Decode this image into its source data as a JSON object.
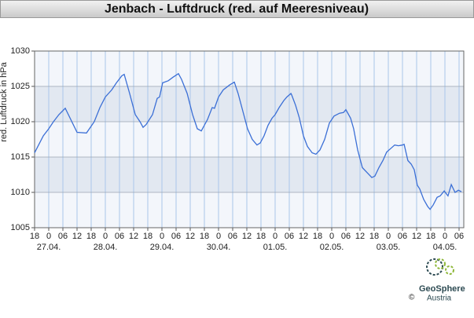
{
  "chart_data": {
    "type": "line",
    "title": "Jenbach - Luftdruck (red. auf Meeresniveau)",
    "y_label": "red. Luftdruck in hPa",
    "color": "#3b6fd6",
    "x": [
      0,
      3.7,
      6,
      8,
      10.3,
      13,
      18,
      22,
      25.3,
      27.7,
      30,
      32.7,
      34.7,
      37,
      38,
      40.3,
      42.7,
      44.7,
      46,
      47.3,
      50,
      52,
      53,
      54.3,
      56.7,
      58.7,
      61,
      62.3,
      64.7,
      67,
      69,
      70.7,
      72,
      73.3,
      75.3,
      76.3,
      78,
      80,
      82.7,
      84.7,
      86.3,
      88.3,
      90.3,
      92.3,
      94.3,
      95.7,
      97.3,
      99,
      100.7,
      102,
      103.7,
      105.7,
      107,
      108.7,
      109,
      110.7,
      112.3,
      114,
      115.7,
      117.7,
      119.3,
      121,
      123,
      125,
      127,
      129.3,
      131,
      132,
      134,
      135.3,
      137,
      139,
      141,
      143,
      144.3,
      146,
      147.7,
      149.3,
      151,
      152.7,
      154.3,
      156,
      156.7,
      158.3,
      159.7,
      161,
      162.3,
      163.3,
      165,
      166.7,
      167.7,
      169,
      170.7,
      172,
      173.7,
      175.3,
      176.7,
      178.3,
      179.7,
      181
    ],
    "values": [
      1015.6,
      1018,
      1019,
      1020,
      1021,
      1021.9,
      1018.5,
      1018.4,
      1020,
      1022,
      1023.5,
      1024.5,
      1025.5,
      1026.5,
      1026.7,
      1024,
      1021,
      1020,
      1019.2,
      1019.6,
      1021,
      1023.3,
      1023.5,
      1025.5,
      1025.8,
      1026.3,
      1026.8,
      1026,
      1024,
      1021,
      1019,
      1018.7,
      1019.5,
      1020.3,
      1022,
      1021.9,
      1023.5,
      1024.5,
      1025.2,
      1025.6,
      1024,
      1021.5,
      1019,
      1017.5,
      1016.7,
      1017,
      1018,
      1019.5,
      1020.5,
      1021,
      1022,
      1023,
      1023.5,
      1024,
      1023.8,
      1022.3,
      1020.5,
      1018,
      1016.5,
      1015.6,
      1015.4,
      1016,
      1017.5,
      1019.8,
      1020.8,
      1021.2,
      1021.3,
      1021.7,
      1020.5,
      1019,
      1016,
      1013.5,
      1012.8,
      1012.1,
      1012.3,
      1013.5,
      1014.5,
      1015.7,
      1016.2,
      1016.7,
      1016.6,
      1016.7,
      1016.8,
      1014.5,
      1014,
      1013.2,
      1011,
      1010.5,
      1009,
      1008,
      1007.6,
      1008.2,
      1009.3,
      1009.5,
      1010.2,
      1009.5,
      1011.1,
      1010,
      1010.3,
      1010.1
    ],
    "xlim": [
      0,
      182
    ],
    "xticks": [
      {
        "value": 0,
        "label": "18"
      },
      {
        "value": 6,
        "label": "0"
      },
      {
        "value": 12,
        "label": "06"
      },
      {
        "value": 18,
        "label": "12"
      },
      {
        "value": 24,
        "label": "18"
      },
      {
        "value": 30,
        "label": "0"
      },
      {
        "value": 36,
        "label": "06"
      },
      {
        "value": 42,
        "label": "12"
      },
      {
        "value": 48,
        "label": "18"
      },
      {
        "value": 54,
        "label": "0"
      },
      {
        "value": 60,
        "label": "06"
      },
      {
        "value": 66,
        "label": "12"
      },
      {
        "value": 72,
        "label": "18"
      },
      {
        "value": 78,
        "label": "0"
      },
      {
        "value": 84,
        "label": "06"
      },
      {
        "value": 90,
        "label": "12"
      },
      {
        "value": 96,
        "label": "18"
      },
      {
        "value": 102,
        "label": "0"
      },
      {
        "value": 108,
        "label": "06"
      },
      {
        "value": 114,
        "label": "12"
      },
      {
        "value": 120,
        "label": "18"
      },
      {
        "value": 126,
        "label": "0"
      },
      {
        "value": 132,
        "label": "06"
      },
      {
        "value": 138,
        "label": "12"
      },
      {
        "value": 144,
        "label": "18"
      },
      {
        "value": 150,
        "label": "0"
      },
      {
        "value": 156,
        "label": "06"
      },
      {
        "value": 162,
        "label": "12"
      },
      {
        "value": 168,
        "label": "18"
      },
      {
        "value": 174,
        "label": "0"
      },
      {
        "value": 180,
        "label": "06"
      }
    ],
    "day_labels": [
      {
        "value": 6,
        "label": "27.04."
      },
      {
        "value": 30,
        "label": "28.04."
      },
      {
        "value": 54,
        "label": "29.04."
      },
      {
        "value": 78,
        "label": "30.04."
      },
      {
        "value": 102,
        "label": "01.05."
      },
      {
        "value": 126,
        "label": "02.05."
      },
      {
        "value": 150,
        "label": "03.05."
      },
      {
        "value": 174,
        "label": "04.05."
      }
    ],
    "ylim": [
      1005,
      1030
    ],
    "yticks": [
      1005,
      1010,
      1015,
      1020,
      1025,
      1030
    ],
    "grid": true
  },
  "logo": {
    "copyright": "©",
    "brand": "GeoSphere",
    "country": "Austria"
  }
}
